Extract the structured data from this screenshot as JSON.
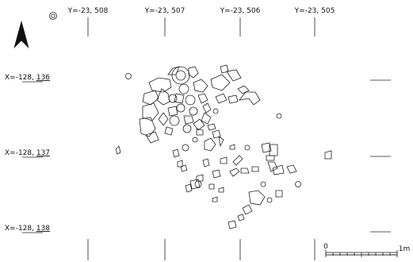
{
  "map": {
    "north_arrow": "north-arrow-icon",
    "y_grid_labels": [
      "Y=-23, 508",
      "Y=-23, 507",
      "Y=-23, 506",
      "Y=-23, 505"
    ],
    "x_grid_labels": [
      {
        "prefix": "X=-128, ",
        "value": "136"
      },
      {
        "prefix": "X=-128, ",
        "value": "137"
      },
      {
        "prefix": "X=-128, ",
        "value": "138"
      }
    ],
    "scale": {
      "start_label": "0",
      "end_label": "1m"
    }
  }
}
